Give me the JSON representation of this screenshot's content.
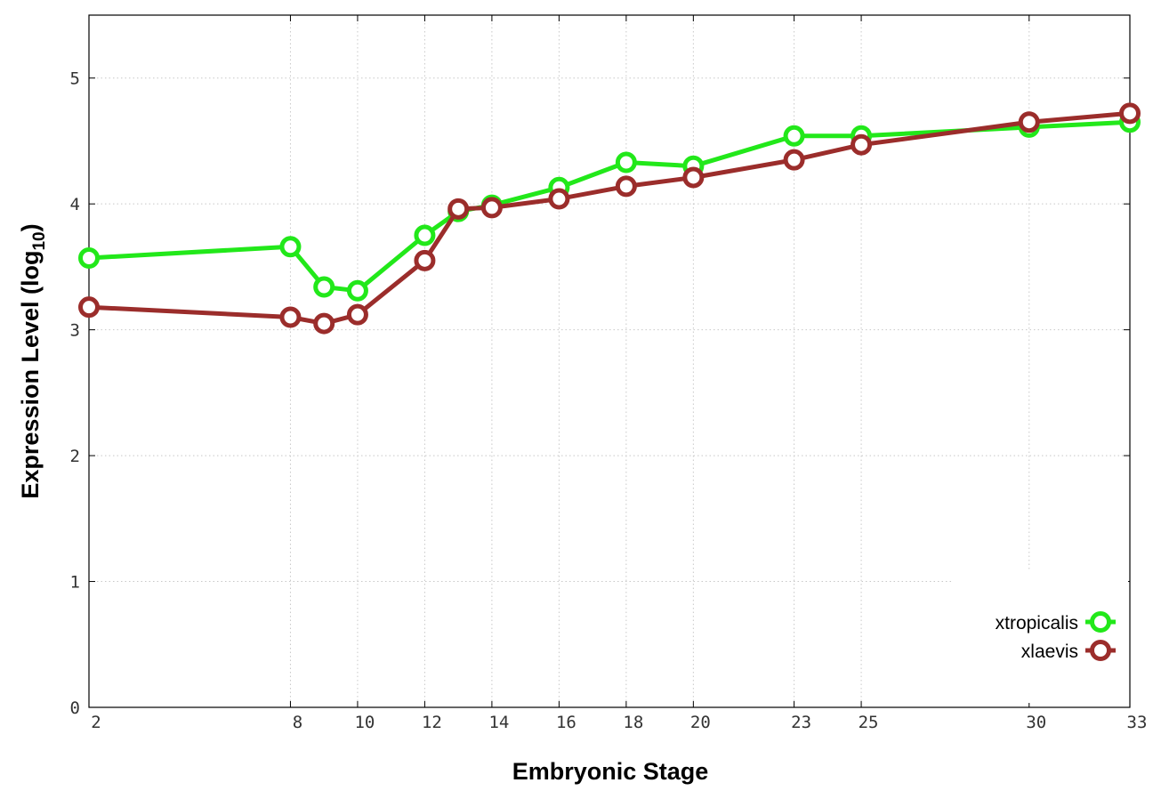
{
  "chart_data": {
    "type": "line",
    "title": "",
    "xlabel": "Embryonic Stage",
    "ylabel": "Expression Level (log",
    "ylabel_sub": "10",
    "ylabel_close": ")",
    "x": [
      2,
      8,
      9,
      10,
      12,
      13,
      14,
      16,
      18,
      20,
      23,
      25,
      30,
      33
    ],
    "xlim": [
      2,
      33
    ],
    "ylim": [
      0,
      5.5
    ],
    "x_ticks": [
      2,
      8,
      10,
      12,
      14,
      16,
      18,
      20,
      23,
      25,
      30,
      33
    ],
    "x_tick_labels": [
      "2",
      "8",
      "10",
      "12",
      "14",
      "16",
      "18",
      "20",
      "23",
      "25",
      "30",
      "33"
    ],
    "y_ticks": [
      0,
      1,
      2,
      3,
      4,
      5
    ],
    "y_tick_labels": [
      "0",
      "1",
      "2",
      "3",
      "4",
      "5"
    ],
    "grid": true,
    "legend_position": "bottom-right",
    "series": [
      {
        "name": "xtropicalis",
        "color": "#22e81a",
        "values": [
          3.57,
          3.66,
          3.34,
          3.31,
          3.75,
          3.94,
          3.99,
          4.13,
          4.33,
          4.3,
          4.54,
          4.54,
          4.61,
          4.65
        ]
      },
      {
        "name": "xlaevis",
        "color": "#9b2d2b",
        "values": [
          3.18,
          3.1,
          3.05,
          3.12,
          3.55,
          3.96,
          3.97,
          4.04,
          4.14,
          4.21,
          4.35,
          4.47,
          4.65,
          4.72
        ]
      }
    ]
  }
}
